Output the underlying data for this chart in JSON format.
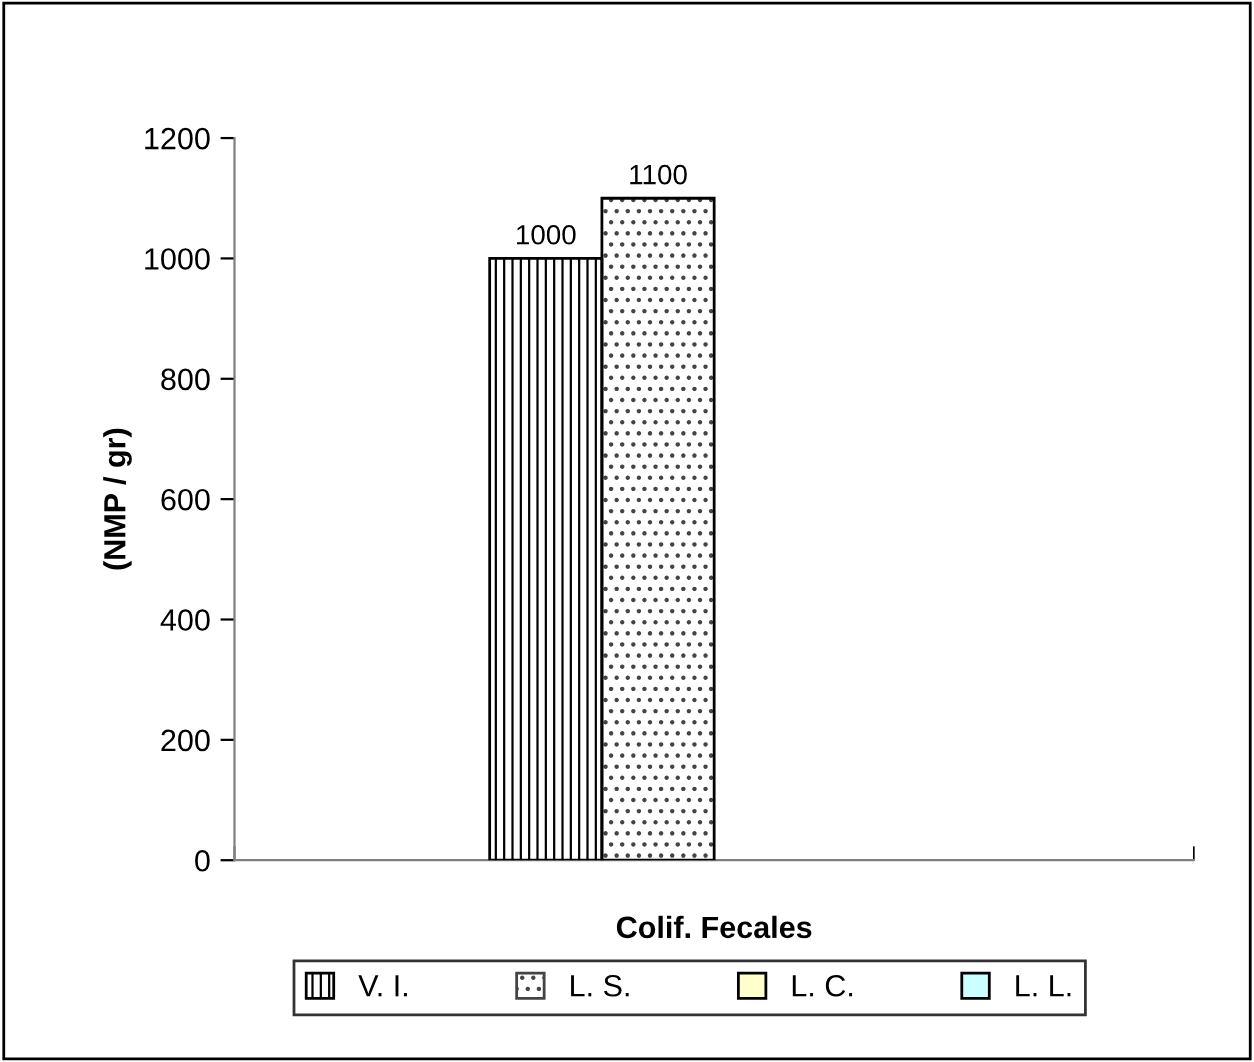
{
  "chart_data": {
    "type": "bar",
    "categories": [
      "Colif. Fecales"
    ],
    "ylabel": "(NMP / gr)",
    "series": [
      {
        "name": "V. I.",
        "color": "#ffffff",
        "values": [
          1000
        ]
      },
      {
        "name": "L. S.",
        "color": "#ffffff",
        "values": [
          1100
        ]
      },
      {
        "name": "L. C.",
        "color": "#ffffcc",
        "values": [
          null
        ]
      },
      {
        "name": "L. L.",
        "color": "#ccffff",
        "values": [
          null
        ]
      }
    ],
    "ylim": [
      0,
      1200
    ],
    "yticks": [
      0,
      200,
      400,
      600,
      800,
      1000,
      1200
    ],
    "data_labels": true,
    "legend": "bottom",
    "grid": false
  }
}
